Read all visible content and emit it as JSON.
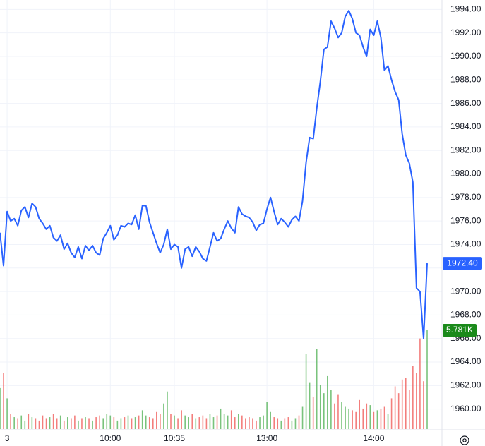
{
  "chart_data": {
    "type": "line",
    "color": "#2962ff",
    "values": [
      1975.0,
      1972.2,
      1976.8,
      1976.0,
      1976.2,
      1975.6,
      1976.9,
      1977.2,
      1976.3,
      1977.5,
      1977.2,
      1976.2,
      1975.8,
      1975.3,
      1975.6,
      1974.6,
      1974.3,
      1974.8,
      1973.6,
      1974.1,
      1973.3,
      1972.9,
      1973.8,
      1972.8,
      1973.9,
      1973.5,
      1973.9,
      1973.3,
      1973.1,
      1974.5,
      1975.0,
      1975.6,
      1974.4,
      1974.8,
      1975.6,
      1975.5,
      1975.8,
      1975.7,
      1976.5,
      1975.3,
      1977.3,
      1977.3,
      1975.9,
      1975.0,
      1974.1,
      1973.3,
      1974.0,
      1975.3,
      1973.6,
      1974.0,
      1973.8,
      1972.0,
      1973.6,
      1973.8,
      1973.0,
      1973.8,
      1973.4,
      1972.8,
      1972.6,
      1973.8,
      1975.0,
      1974.3,
      1974.5,
      1975.3,
      1976.0,
      1975.4,
      1975.0,
      1977.2,
      1976.6,
      1976.4,
      1976.3,
      1975.9,
      1975.2,
      1975.7,
      1975.8,
      1977.0,
      1978.0,
      1976.8,
      1975.7,
      1976.2,
      1975.9,
      1975.5,
      1976.1,
      1976.4,
      1976.0,
      1977.7,
      1981.0,
      1983.1,
      1983.0,
      1985.6,
      1987.9,
      1990.6,
      1990.8,
      1993.0,
      1992.4,
      1991.6,
      1992.0,
      1993.4,
      1993.9,
      1993.2,
      1992.0,
      1991.8,
      1990.8,
      1990.0,
      1992.3,
      1991.8,
      1993.0,
      1991.6,
      1988.8,
      1989.2,
      1988.0,
      1987.0,
      1986.3,
      1983.4,
      1981.6,
      1980.9,
      1979.3,
      1970.3,
      1970.0,
      1966.0,
      1972.4
    ],
    "price_label": "1972.40",
    "volume": [
      2400,
      3300,
      1800,
      900,
      700,
      600,
      800,
      500,
      900,
      700,
      600,
      500,
      800,
      600,
      700,
      900,
      600,
      800,
      500,
      700,
      600,
      800,
      500,
      600,
      700,
      600,
      500,
      700,
      800,
      600,
      900,
      800,
      700,
      500,
      600,
      700,
      800,
      600,
      700,
      800,
      1100,
      800,
      700,
      600,
      1000,
      900,
      1500,
      2200,
      900,
      800,
      600,
      1100,
      800,
      700,
      900,
      600,
      700,
      800,
      600,
      900,
      700,
      800,
      1200,
      900,
      800,
      1100,
      700,
      900,
      800,
      600,
      700,
      600,
      500,
      700,
      800,
      1600,
      1000,
      700,
      600,
      500,
      600,
      700,
      500,
      600,
      800,
      1300,
      4400,
      2700,
      1900,
      4700,
      2600,
      2100,
      3100,
      2300,
      1500,
      2000,
      1600,
      1300,
      1200,
      1100,
      1000,
      1700,
      1200,
      1500,
      1400,
      1000,
      1100,
      1200,
      1300,
      900,
      1800,
      2500,
      2100,
      2900,
      3000,
      2300,
      3700,
      3300,
      5300,
      2800,
      5781
    ],
    "volume_label": "5.781K",
    "up_color": "#4caf50",
    "down_color": "#ef5350",
    "ylim": [
      1958.3,
      1994.8
    ],
    "yticks": [
      {
        "value": 1960,
        "label": "1960.00"
      },
      {
        "value": 1962,
        "label": "1962.00"
      },
      {
        "value": 1964,
        "label": "1964.00"
      },
      {
        "value": 1966,
        "label": "1966.00"
      },
      {
        "value": 1968,
        "label": "1968.00"
      },
      {
        "value": 1970,
        "label": "1970.00"
      },
      {
        "value": 1972,
        "label": "1972.00"
      },
      {
        "value": 1974,
        "label": "1974.00"
      },
      {
        "value": 1976,
        "label": "1976.00"
      },
      {
        "value": 1978,
        "label": "1978.00"
      },
      {
        "value": 1980,
        "label": "1980.00"
      },
      {
        "value": 1982,
        "label": "1982.00"
      },
      {
        "value": 1984,
        "label": "1984.00"
      },
      {
        "value": 1986,
        "label": "1986.00"
      },
      {
        "value": 1988,
        "label": "1988.00"
      },
      {
        "value": 1990,
        "label": "1990.00"
      },
      {
        "value": 1992,
        "label": "1992.00"
      },
      {
        "value": 1994,
        "label": "1994.00"
      }
    ],
    "xticks": [
      {
        "value": 2,
        "label": "3"
      },
      {
        "value": 31,
        "label": "10:00"
      },
      {
        "value": 49,
        "label": "10:35"
      },
      {
        "value": 75,
        "label": "13:00"
      },
      {
        "value": 105,
        "label": "14:00"
      }
    ],
    "grid": true
  }
}
